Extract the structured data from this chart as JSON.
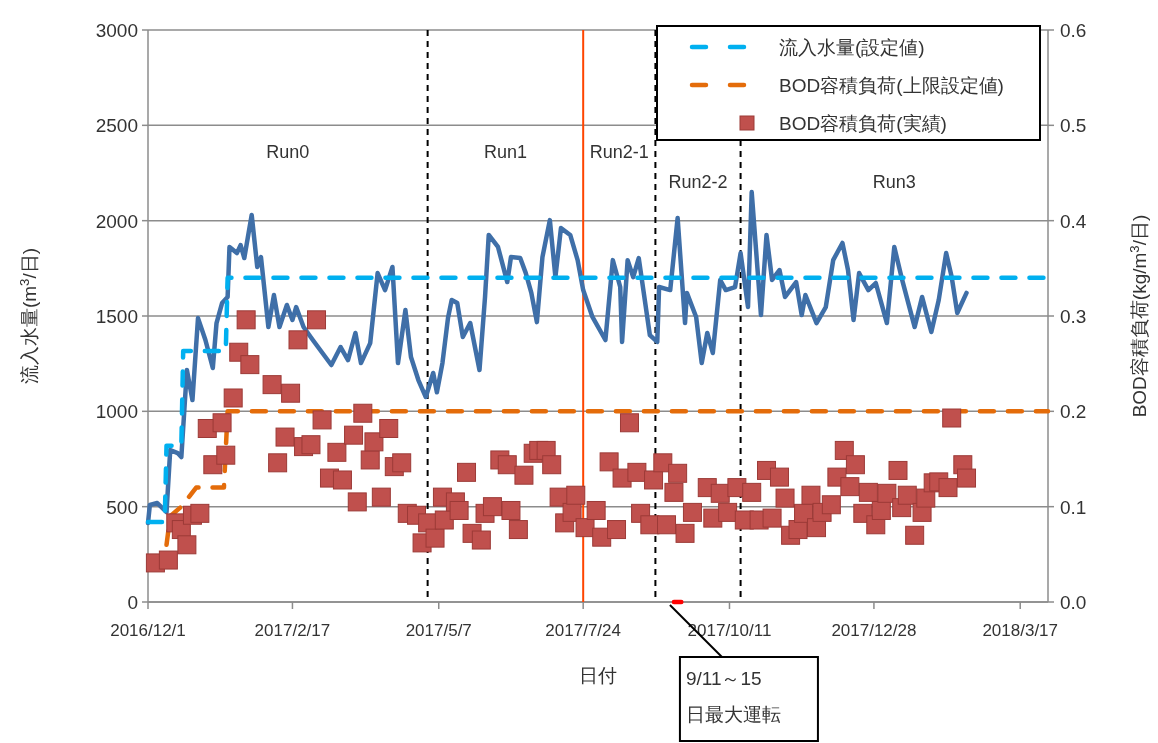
{
  "chart_data": {
    "type": "line",
    "xlabel": "日付",
    "ylabel": "流入水量(m$^{3}$/日)",
    "y2label": "BOD容積負荷(kg/m$^{3}$/日)",
    "xlim": [
      "2016-12-01",
      "2018-04-01"
    ],
    "xticks": [
      {
        "value": "2016-12-01",
        "label": "2016/12/1"
      },
      {
        "value": "2017-02-17",
        "label": "2017/2/17"
      },
      {
        "value": "2017-05-07",
        "label": "2017/5/7"
      },
      {
        "value": "2017-07-24",
        "label": "2017/7/24"
      },
      {
        "value": "2017-10-11",
        "label": "2017/10/11"
      },
      {
        "value": "2017-12-28",
        "label": "2017/12/28"
      },
      {
        "value": "2018-03-17",
        "label": "2018/3/17"
      }
    ],
    "ylim": [
      0,
      3000
    ],
    "yticks": [
      0,
      500,
      1000,
      1500,
      2000,
      2500,
      3000
    ],
    "y2lim": [
      0,
      0.6
    ],
    "y2ticks": [
      {
        "value": 0,
        "label": "0.0"
      },
      0.1,
      0.2,
      0.3,
      0.4,
      0.5,
      0.6
    ],
    "grid": "y",
    "legend": "top right",
    "series": [
      {
        "color": "#3f6fa8",
        "line_style": "solid",
        "x": [
          "2016-12-01",
          "2016-12-02",
          "2016-12-06",
          "2016-12-11",
          "2016-12-13",
          "2016-12-17",
          "2016-12-19",
          "2016-12-22",
          "2016-12-25",
          "2016-12-28",
          "2017-01-01",
          "2017-01-05",
          "2017-01-07",
          "2017-01-10",
          "2017-01-13",
          "2017-01-14",
          "2017-01-18",
          "2017-01-20",
          "2017-01-22",
          "2017-01-26",
          "2017-01-29",
          "2017-01-31",
          "2017-02-04",
          "2017-02-07",
          "2017-02-10",
          "2017-02-14",
          "2017-02-17",
          "2017-02-19",
          "2017-02-23",
          "2017-02-28",
          "2017-03-10",
          "2017-03-15",
          "2017-03-19",
          "2017-03-23",
          "2017-03-26",
          "2017-03-31",
          "2017-04-04",
          "2017-04-08",
          "2017-04-12",
          "2017-04-15",
          "2017-04-19",
          "2017-04-22",
          "2017-04-26",
          "2017-04-30",
          "2017-05-04",
          "2017-05-06",
          "2017-05-09",
          "2017-05-12",
          "2017-05-14",
          "2017-05-17",
          "2017-05-20",
          "2017-05-24",
          "2017-05-29",
          "2017-06-01",
          "2017-06-03",
          "2017-06-08",
          "2017-06-13",
          "2017-06-15",
          "2017-06-20",
          "2017-06-23",
          "2017-06-26",
          "2017-06-29",
          "2017-07-02",
          "2017-07-06",
          "2017-07-09",
          "2017-07-12",
          "2017-07-17",
          "2017-07-21",
          "2017-07-24",
          "2017-07-29",
          "2017-08-05",
          "2017-08-09",
          "2017-08-13",
          "2017-08-14",
          "2017-08-17",
          "2017-08-20",
          "2017-08-23",
          "2017-08-29",
          "2017-09-02",
          "2017-09-03",
          "2017-09-09",
          "2017-09-13",
          "2017-09-17",
          "2017-09-18",
          "2017-09-23",
          "2017-09-26",
          "2017-09-29",
          "2017-10-02",
          "2017-10-06",
          "2017-10-09",
          "2017-10-14",
          "2017-10-17",
          "2017-10-21",
          "2017-10-23",
          "2017-10-28",
          "2017-10-31",
          "2017-11-03",
          "2017-11-07",
          "2017-11-10",
          "2017-11-16",
          "2017-11-19",
          "2017-11-21",
          "2017-11-27",
          "2017-12-02",
          "2017-12-06",
          "2017-12-11",
          "2017-12-14",
          "2017-12-17",
          "2017-12-20",
          "2017-12-25",
          "2017-12-29",
          "2018-01-04",
          "2018-01-08",
          "2018-01-12",
          "2018-01-19",
          "2018-01-23",
          "2018-01-28",
          "2018-02-01",
          "2018-02-05",
          "2018-02-08",
          "2018-02-11",
          "2018-02-16"
        ],
        "values": [
          414,
          509,
          519,
          472,
          797,
          781,
          760,
          1217,
          1059,
          1489,
          1374,
          1227,
          1463,
          1568,
          1600,
          1862,
          1830,
          1872,
          1804,
          2030,
          1757,
          1809,
          1442,
          1610,
          1442,
          1558,
          1479,
          1547,
          1442,
          1374,
          1243,
          1337,
          1269,
          1411,
          1253,
          1358,
          1725,
          1636,
          1757,
          1253,
          1531,
          1285,
          1164,
          1075,
          1201,
          1100,
          1253,
          1490,
          1584,
          1568,
          1390,
          1463,
          1217,
          1600,
          1925,
          1862,
          1678,
          1809,
          1804,
          1725,
          1621,
          1468,
          1809,
          2003,
          1704,
          1961,
          1925,
          1793,
          1636,
          1495,
          1374,
          1793,
          1652,
          1364,
          1793,
          1704,
          1804,
          1400,
          1364,
          1652,
          1636,
          2014,
          1463,
          1621,
          1495,
          1253,
          1411,
          1306,
          1689,
          1636,
          1652,
          1830,
          1547,
          2150,
          1505,
          1925,
          1689,
          1741,
          1600,
          1678,
          1505,
          1610,
          1463,
          1547,
          1793,
          1883,
          1741,
          1479,
          1725,
          1636,
          1673,
          1463,
          1862,
          1699,
          1442,
          1600,
          1416,
          1584,
          1830,
          1704,
          1516,
          1621
        ]
      },
      {
        "color": "#ff0000",
        "line_style": "solid",
        "x": [
          "2017-09-11",
          "2017-09-15"
        ],
        "values": [
          0,
          0
        ]
      },
      {
        "name": "流入水量(設定値)",
        "color": "#00b0f0",
        "line_style": "dashed",
        "x": [
          "2016-12-01",
          "2016-12-10",
          "2016-12-11",
          "2016-12-19",
          "2016-12-20",
          "2017-01-12",
          "2017-01-13",
          "2018-04-01"
        ],
        "values": [
          420,
          420,
          820,
          820,
          1316,
          1316,
          1700,
          1700
        ]
      },
      {
        "name": "BOD容積負荷(上限設定値)",
        "color": "#e46c0a",
        "line_style": "dashed",
        "axis": "y2",
        "x": [
          "2016-12-11",
          "2016-12-13",
          "2016-12-19",
          "2016-12-27",
          "2017-01-11",
          "2017-01-13",
          "2018-04-01"
        ],
        "values": [
          0.06,
          0.09,
          0.1,
          0.12,
          0.12,
          0.2,
          0.2
        ]
      },
      {
        "type": "scatter",
        "name": "BOD容積負荷(実績)",
        "color": "#c0504d",
        "marker": "square",
        "axis": "y2",
        "x": [
          "2016-12-05",
          "2016-12-12",
          "2016-12-16",
          "2016-12-19",
          "2016-12-22",
          "2016-12-25",
          "2016-12-29",
          "2017-01-02",
          "2017-01-05",
          "2017-01-10",
          "2017-01-12",
          "2017-01-16",
          "2017-01-19",
          "2017-01-23",
          "2017-01-25",
          "2017-02-06",
          "2017-02-09",
          "2017-02-13",
          "2017-02-16",
          "2017-02-20",
          "2017-02-23",
          "2017-02-27",
          "2017-03-02",
          "2017-03-05",
          "2017-03-09",
          "2017-03-13",
          "2017-03-16",
          "2017-03-22",
          "2017-03-24",
          "2017-03-27",
          "2017-03-31",
          "2017-04-02",
          "2017-04-06",
          "2017-04-10",
          "2017-04-13",
          "2017-04-17",
          "2017-04-20",
          "2017-04-25",
          "2017-04-28",
          "2017-05-01",
          "2017-05-05",
          "2017-05-09",
          "2017-05-10",
          "2017-05-16",
          "2017-05-18",
          "2017-05-22",
          "2017-05-25",
          "2017-05-30",
          "2017-06-01",
          "2017-06-05",
          "2017-06-09",
          "2017-06-13",
          "2017-06-15",
          "2017-06-19",
          "2017-06-22",
          "2017-06-27",
          "2017-06-30",
          "2017-07-04",
          "2017-07-07",
          "2017-07-11",
          "2017-07-14",
          "2017-07-18",
          "2017-07-20",
          "2017-07-25",
          "2017-07-31",
          "2017-08-03",
          "2017-08-07",
          "2017-08-11",
          "2017-08-14",
          "2017-08-18",
          "2017-08-22",
          "2017-08-24",
          "2017-08-29",
          "2017-08-31",
          "2017-09-05",
          "2017-09-07",
          "2017-09-11",
          "2017-09-13",
          "2017-09-17",
          "2017-09-21",
          "2017-09-29",
          "2017-10-02",
          "2017-10-06",
          "2017-10-10",
          "2017-10-15",
          "2017-10-19",
          "2017-10-23",
          "2017-10-27",
          "2017-10-31",
          "2017-11-03",
          "2017-11-07",
          "2017-11-10",
          "2017-11-13",
          "2017-11-17",
          "2017-11-20",
          "2017-11-24",
          "2017-11-27",
          "2017-11-30",
          "2017-12-05",
          "2017-12-08",
          "2017-12-12",
          "2017-12-15",
          "2017-12-18",
          "2017-12-22",
          "2017-12-25",
          "2017-12-29",
          "2018-01-01",
          "2018-01-04",
          "2018-01-10",
          "2018-01-12",
          "2018-01-15",
          "2018-01-19",
          "2018-01-23",
          "2018-01-25",
          "2018-01-29",
          "2018-02-01",
          "2018-02-06",
          "2018-02-08",
          "2018-02-14",
          "2018-02-16"
        ],
        "values": [
          0.041,
          0.044,
          0.083,
          0.076,
          0.06,
          0.091,
          0.093,
          0.182,
          0.144,
          0.188,
          0.154,
          0.214,
          0.262,
          0.296,
          0.249,
          0.228,
          0.146,
          0.173,
          0.219,
          0.275,
          0.163,
          0.165,
          0.296,
          0.191,
          0.13,
          0.157,
          0.128,
          0.175,
          0.105,
          0.198,
          0.149,
          0.168,
          0.11,
          0.182,
          0.142,
          0.146,
          0.093,
          0.091,
          0.062,
          0.083,
          0.067,
          0.11,
          0.086,
          0.105,
          0.096,
          0.136,
          0.072,
          0.065,
          0.093,
          0.1,
          0.149,
          0.144,
          0.096,
          0.076,
          0.133,
          0.156,
          0.159,
          0.159,
          0.144,
          0.11,
          0.083,
          0.094,
          0.112,
          0.078,
          0.096,
          0.068,
          0.147,
          0.076,
          0.13,
          0.188,
          0.136,
          0.093,
          0.081,
          0.128,
          0.146,
          0.081,
          0.115,
          0.135,
          0.072,
          0.094,
          0.12,
          0.088,
          0.114,
          0.094,
          0.12,
          0.086,
          0.115,
          0.086,
          0.138,
          0.088,
          0.131,
          0.109,
          0.07,
          0.076,
          0.093,
          0.112,
          0.078,
          0.094,
          0.102,
          0.131,
          0.159,
          0.121,
          0.144,
          0.093,
          0.115,
          0.081,
          0.096,
          0.114,
          0.138,
          0.099,
          0.112,
          0.07,
          0.094,
          0.109,
          0.125,
          0.126,
          0.12,
          0.193,
          0.144,
          0.13
        ]
      }
    ],
    "ref_lines": [
      {
        "axis": "x",
        "value": "2017-05-01",
        "color": "#000000",
        "line_style": "dashed"
      },
      {
        "axis": "x",
        "value": "2017-07-24",
        "color": "#ff4500",
        "line_style": "solid"
      },
      {
        "axis": "x",
        "value": "2017-09-01",
        "color": "#000000",
        "line_style": "dashed"
      },
      {
        "axis": "x",
        "value": "2017-10-17",
        "color": "#000000",
        "line_style": "dashed"
      }
    ],
    "annotations": [
      "Run0",
      "Run1",
      "Run2-1",
      "Run2-2",
      "Run3",
      {
        "text": "9/11～15\n日最大運転",
        "x": "2017-09-11",
        "y": 0
      }
    ]
  }
}
